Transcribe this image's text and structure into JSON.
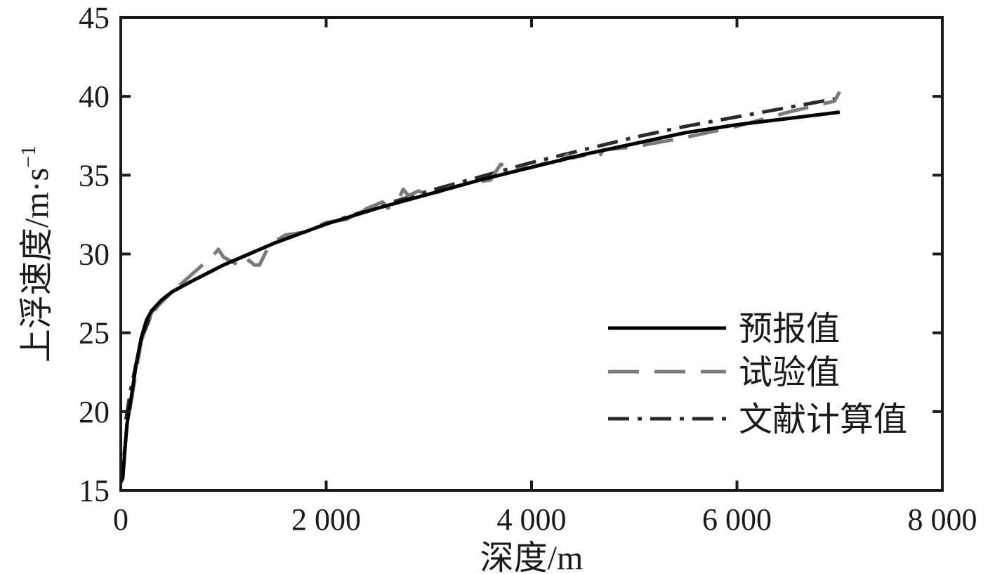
{
  "chart_data": {
    "type": "line",
    "title": "",
    "xlabel": "深度/m",
    "ylabel_main": "上浮速度/m·s",
    "ylabel_sup": "−1",
    "xlim": [
      0,
      8000
    ],
    "ylim": [
      15,
      45
    ],
    "x_ticks": [
      0,
      2000,
      4000,
      6000,
      8000
    ],
    "x_tick_labels": [
      "0",
      "2 000",
      "4 000",
      "6 000",
      "8 000"
    ],
    "y_ticks": [
      15,
      20,
      25,
      30,
      35,
      40,
      45
    ],
    "y_tick_labels": [
      "15",
      "20",
      "25",
      "30",
      "35",
      "40",
      "45"
    ],
    "grid": false,
    "legend_position": "bottom-right",
    "colors": {
      "axis": "#1a1a1a",
      "forecast": "#000000",
      "test": "#7a7a7a",
      "literature": "#2b2b2b"
    },
    "series": [
      {
        "name": "预报值",
        "style": "solid",
        "x": [
          0,
          20,
          40,
          60,
          100,
          150,
          200,
          250,
          300,
          400,
          500,
          700,
          1000,
          1500,
          2000,
          2500,
          3000,
          3500,
          4000,
          4500,
          5000,
          5500,
          6000,
          6500,
          7000
        ],
        "y": [
          15.5,
          15.8,
          17.5,
          19.2,
          20.8,
          23.0,
          24.7,
          25.8,
          26.4,
          27.1,
          27.6,
          28.3,
          29.3,
          30.7,
          31.9,
          32.9,
          33.8,
          34.7,
          35.5,
          36.3,
          37.0,
          37.7,
          38.2,
          38.6,
          39.0
        ]
      },
      {
        "name": "试验值",
        "style": "dashed",
        "x": [
          30,
          60,
          100,
          200,
          300,
          500,
          900,
          950,
          1000,
          1200,
          1250,
          1300,
          1350,
          1450,
          1600,
          1800,
          2000,
          2200,
          2400,
          2550,
          2600,
          2700,
          2750,
          2800,
          2900,
          3000,
          3200,
          3400,
          3600,
          3700,
          3800,
          4000,
          4150,
          4200,
          4350,
          4400,
          4550,
          4650,
          4700,
          5000,
          5500,
          6000,
          6500,
          6950,
          7000
        ],
        "y": [
          17.2,
          19.0,
          20.6,
          24.5,
          26.3,
          27.6,
          29.9,
          30.3,
          29.8,
          29.1,
          29.6,
          29.3,
          29.3,
          30.6,
          31.2,
          31.4,
          32.0,
          32.2,
          32.9,
          33.3,
          32.9,
          33.4,
          34.1,
          33.7,
          34.0,
          33.7,
          34.2,
          34.5,
          34.7,
          35.7,
          35.3,
          35.5,
          35.8,
          35.5,
          36.3,
          36.1,
          36.3,
          36.1,
          36.6,
          36.8,
          37.4,
          38.1,
          39.0,
          39.7,
          40.3
        ]
      },
      {
        "name": "文献计算值",
        "style": "dashdot",
        "x": [
          50,
          100,
          200,
          300,
          400,
          500,
          700,
          1000,
          1500,
          2000,
          2500,
          3000,
          3500,
          4000,
          4500,
          5000,
          5500,
          6000,
          6500,
          7000
        ],
        "y": [
          19.5,
          21.5,
          24.6,
          26.2,
          27.0,
          27.6,
          28.3,
          29.3,
          30.7,
          31.9,
          33.0,
          34.0,
          34.9,
          35.8,
          36.6,
          37.4,
          38.1,
          38.7,
          39.3,
          39.9
        ]
      }
    ]
  }
}
